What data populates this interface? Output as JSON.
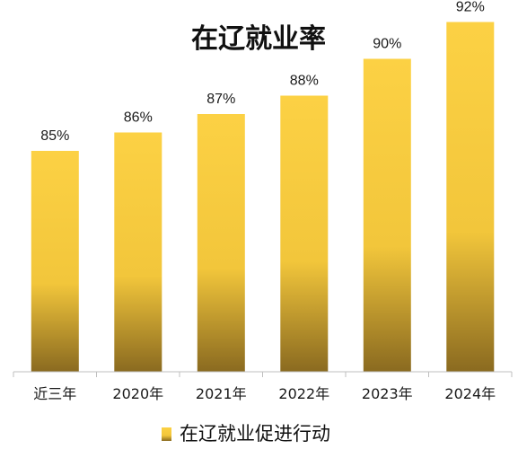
{
  "chart_data": {
    "type": "bar",
    "title": "在辽就业率",
    "categories": [
      "近三年",
      "2020年",
      "2021年",
      "2022年",
      "2023年",
      "2024年"
    ],
    "series": [
      {
        "name": "在辽就业促进行动",
        "values": [
          85,
          86,
          87,
          88,
          90,
          92
        ]
      }
    ],
    "data_labels": [
      "85%",
      "86%",
      "87%",
      "88%",
      "90%",
      "92%"
    ],
    "unit": "%",
    "xlabel": "",
    "ylabel": "",
    "ylim": [
      73,
      93
    ],
    "grid": false,
    "legend_position": "bottom",
    "colors": {
      "bar_top": "#FCD144",
      "bar_mid": "#F2C63B",
      "bar_bottom": "#8A6A20",
      "axis": "#bfbfbf"
    }
  }
}
